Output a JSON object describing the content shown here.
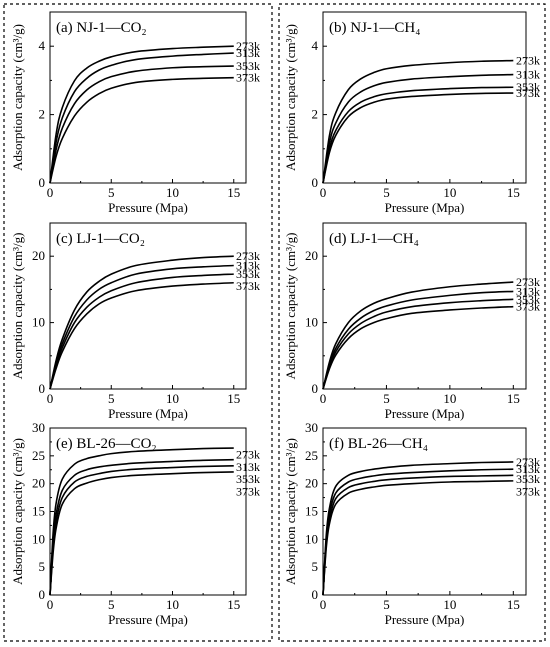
{
  "panel_groups": [
    {
      "name": "CO2"
    },
    {
      "name": "CH4"
    }
  ],
  "chart_data": [
    {
      "type": "line",
      "panel": "(a)",
      "title": "(a) NJ-1—CO₂",
      "xlabel": "Pressure (Mpa)",
      "ylabel": "Adsorption capacity (cm³/g)",
      "xlim": [
        0,
        16
      ],
      "ylim": [
        0,
        5
      ],
      "xticks": [
        0,
        5,
        10,
        15
      ],
      "yticks": [
        0,
        2,
        4
      ],
      "x": [
        0,
        0.5,
        1,
        2,
        3,
        4,
        5,
        7,
        10,
        12.5,
        15
      ],
      "series": [
        {
          "name": "273k",
          "values": [
            0,
            1.43,
            2.2,
            2.99,
            3.36,
            3.56,
            3.69,
            3.84,
            3.93,
            3.97,
            4.0
          ]
        },
        {
          "name": "313k",
          "values": [
            0,
            1.2,
            1.9,
            2.67,
            3.06,
            3.3,
            3.44,
            3.61,
            3.71,
            3.76,
            3.8
          ]
        },
        {
          "name": "353k",
          "values": [
            0,
            0.98,
            1.6,
            2.32,
            2.72,
            2.96,
            3.11,
            3.27,
            3.37,
            3.4,
            3.42
          ]
        },
        {
          "name": "373k",
          "values": [
            0,
            0.78,
            1.3,
            1.96,
            2.36,
            2.61,
            2.77,
            2.94,
            3.03,
            3.06,
            3.08
          ]
        }
      ]
    },
    {
      "type": "line",
      "panel": "(b)",
      "title": "(b) NJ-1—CH₄",
      "xlabel": "Pressure (Mpa)",
      "ylabel": "Adsorption capacity (cm³/g)",
      "xlim": [
        0,
        16
      ],
      "ylim": [
        0,
        5
      ],
      "xticks": [
        0,
        5,
        10,
        15
      ],
      "yticks": [
        0,
        2,
        4
      ],
      "x": [
        0,
        0.5,
        1,
        2,
        3,
        4,
        5,
        7,
        10,
        12.5,
        15
      ],
      "series": [
        {
          "name": "273k",
          "values": [
            0,
            1.37,
            2.05,
            2.73,
            3.05,
            3.23,
            3.34,
            3.44,
            3.52,
            3.56,
            3.58
          ]
        },
        {
          "name": "313k",
          "values": [
            0,
            1.16,
            1.75,
            2.37,
            2.67,
            2.84,
            2.94,
            3.04,
            3.11,
            3.15,
            3.17
          ]
        },
        {
          "name": "353k",
          "values": [
            0,
            0.99,
            1.53,
            2.09,
            2.37,
            2.52,
            2.61,
            2.7,
            2.76,
            2.79,
            2.8
          ]
        },
        {
          "name": "373k",
          "values": [
            0,
            0.88,
            1.39,
            1.94,
            2.21,
            2.36,
            2.45,
            2.53,
            2.59,
            2.62,
            2.63
          ]
        }
      ]
    },
    {
      "type": "line",
      "panel": "(c)",
      "title": "(c) LJ-1—CO₂",
      "xlabel": "Pressure (Mpa)",
      "ylabel": "Adsorption capacity (cm³/g)",
      "xlim": [
        0,
        16
      ],
      "ylim": [
        0,
        25
      ],
      "xticks": [
        0,
        5,
        10,
        15
      ],
      "yticks": [
        0,
        10,
        20
      ],
      "x": [
        0,
        0.5,
        1,
        2,
        3,
        4,
        5,
        7,
        10,
        12.5,
        15
      ],
      "series": [
        {
          "name": "273k",
          "values": [
            0,
            4.3,
            7.5,
            11.9,
            14.6,
            16.2,
            17.3,
            18.6,
            19.4,
            19.8,
            20.0
          ]
        },
        {
          "name": "313k",
          "values": [
            0,
            3.9,
            6.8,
            10.9,
            13.4,
            15.0,
            16.0,
            17.3,
            18.1,
            18.4,
            18.6
          ]
        },
        {
          "name": "353k",
          "values": [
            0,
            3.5,
            6.2,
            10.0,
            12.3,
            13.8,
            14.8,
            16.0,
            16.8,
            17.1,
            17.3
          ]
        },
        {
          "name": "373k",
          "values": [
            0,
            3.1,
            5.6,
            9.1,
            11.3,
            12.8,
            13.7,
            14.8,
            15.5,
            15.8,
            16.0
          ]
        }
      ]
    },
    {
      "type": "line",
      "panel": "(d)",
      "title": "(d) LJ-1—CH₄",
      "xlabel": "Pressure (Mpa)",
      "ylabel": "Adsorption capacity (cm³/g)",
      "xlim": [
        0,
        16
      ],
      "ylim": [
        0,
        25
      ],
      "xticks": [
        0,
        5,
        10,
        15
      ],
      "yticks": [
        0,
        10,
        20
      ],
      "x": [
        0,
        0.5,
        1,
        2,
        3,
        4,
        5,
        7,
        10,
        12.5,
        15
      ],
      "series": [
        {
          "name": "273k",
          "values": [
            0,
            4.0,
            6.8,
            10.0,
            11.8,
            12.9,
            13.6,
            14.6,
            15.4,
            15.8,
            16.1
          ]
        },
        {
          "name": "313k",
          "values": [
            0,
            3.6,
            6.1,
            9.0,
            10.7,
            11.8,
            12.5,
            13.4,
            14.1,
            14.5,
            14.7
          ]
        },
        {
          "name": "353k",
          "values": [
            0,
            3.3,
            5.6,
            8.3,
            9.9,
            10.9,
            11.6,
            12.4,
            13.0,
            13.3,
            13.5
          ]
        },
        {
          "name": "373k",
          "values": [
            0,
            3.0,
            5.1,
            7.6,
            9.1,
            10.0,
            10.6,
            11.4,
            11.9,
            12.2,
            12.4
          ]
        }
      ]
    },
    {
      "type": "line",
      "panel": "(e)",
      "title": "(e) BL-26—CO₂",
      "xlabel": "Pressure (Mpa)",
      "ylabel": "Adsorption capacity (cm³/g)",
      "xlim": [
        0,
        16
      ],
      "ylim": [
        0,
        30
      ],
      "xticks": [
        0,
        5,
        10,
        15
      ],
      "yticks": [
        0,
        5,
        10,
        15,
        20,
        25,
        30
      ],
      "x": [
        0,
        0.25,
        0.5,
        1,
        2,
        3,
        4,
        5,
        7,
        10,
        12.5,
        15
      ],
      "series": [
        {
          "name": "273k",
          "values": [
            0,
            11.0,
            16.5,
            20.8,
            23.5,
            24.5,
            25.0,
            25.4,
            25.8,
            26.1,
            26.3,
            26.4
          ]
        },
        {
          "name": "313k",
          "values": [
            0,
            9.5,
            14.5,
            18.8,
            21.5,
            22.5,
            23.0,
            23.3,
            23.7,
            24.0,
            24.2,
            24.3
          ]
        },
        {
          "name": "353k",
          "values": [
            0,
            8.5,
            13.2,
            17.5,
            20.3,
            21.3,
            21.8,
            22.2,
            22.6,
            22.9,
            23.1,
            23.2
          ]
        },
        {
          "name": "373k",
          "values": [
            0,
            7.5,
            12.0,
            16.3,
            19.1,
            20.1,
            20.7,
            21.1,
            21.5,
            21.8,
            22.0,
            22.1
          ]
        }
      ]
    },
    {
      "type": "line",
      "panel": "(f)",
      "title": "(f) BL-26—CH₄",
      "xlabel": "Pressure (Mpa)",
      "ylabel": "Adsorption capacity (cm³/g)",
      "xlim": [
        0,
        16
      ],
      "ylim": [
        0,
        30
      ],
      "xticks": [
        0,
        5,
        10,
        15
      ],
      "yticks": [
        0,
        5,
        10,
        15,
        20,
        25,
        30
      ],
      "x": [
        0,
        0.25,
        0.5,
        1,
        2,
        3,
        4,
        5,
        7,
        10,
        12.5,
        15
      ],
      "series": [
        {
          "name": "273k",
          "values": [
            0,
            10.5,
            15.5,
            19.5,
            21.5,
            22.2,
            22.6,
            22.9,
            23.3,
            23.6,
            23.8,
            23.9
          ]
        },
        {
          "name": "313k",
          "values": [
            0,
            9.7,
            14.5,
            18.3,
            20.3,
            21.0,
            21.4,
            21.7,
            22.0,
            22.3,
            22.5,
            22.6
          ]
        },
        {
          "name": "353k",
          "values": [
            0,
            9.0,
            13.5,
            17.3,
            19.3,
            20.0,
            20.4,
            20.7,
            21.0,
            21.3,
            21.4,
            21.5
          ]
        },
        {
          "name": "373k",
          "values": [
            0,
            8.3,
            12.7,
            16.3,
            18.3,
            19.0,
            19.4,
            19.7,
            20.0,
            20.3,
            20.4,
            20.5
          ]
        }
      ]
    }
  ]
}
